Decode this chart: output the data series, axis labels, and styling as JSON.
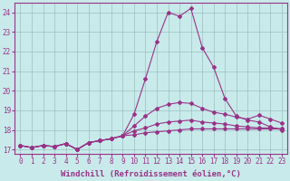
{
  "xlabel": "Windchill (Refroidissement éolien,°C)",
  "ylabel": "",
  "xlim": [
    -0.5,
    23.5
  ],
  "ylim": [
    16.8,
    24.5
  ],
  "yticks": [
    17,
    18,
    19,
    20,
    21,
    22,
    23,
    24
  ],
  "xticks": [
    0,
    1,
    2,
    3,
    4,
    5,
    6,
    7,
    8,
    9,
    10,
    11,
    12,
    13,
    14,
    15,
    16,
    17,
    18,
    19,
    20,
    21,
    22,
    23
  ],
  "bg_color": "#c8eaea",
  "line_color": "#993388",
  "grid_color": "#9bbfbf",
  "lines": [
    [
      17.2,
      17.1,
      17.2,
      17.15,
      17.3,
      17.0,
      17.35,
      17.45,
      17.55,
      17.7,
      18.8,
      20.6,
      22.5,
      24.0,
      23.8,
      24.2,
      22.2,
      21.2,
      19.6,
      18.7,
      18.5,
      18.4,
      18.15,
      18.0
    ],
    [
      17.2,
      17.1,
      17.2,
      17.15,
      17.3,
      17.0,
      17.35,
      17.45,
      17.55,
      17.7,
      18.2,
      18.7,
      19.1,
      19.3,
      19.4,
      19.35,
      19.1,
      18.9,
      18.8,
      18.65,
      18.55,
      18.75,
      18.55,
      18.35
    ],
    [
      17.2,
      17.1,
      17.2,
      17.15,
      17.3,
      17.0,
      17.35,
      17.45,
      17.55,
      17.7,
      17.95,
      18.1,
      18.3,
      18.4,
      18.45,
      18.5,
      18.4,
      18.35,
      18.3,
      18.2,
      18.15,
      18.1,
      18.1,
      18.05
    ],
    [
      17.2,
      17.1,
      17.2,
      17.15,
      17.3,
      17.0,
      17.35,
      17.45,
      17.55,
      17.7,
      17.75,
      17.85,
      17.9,
      17.95,
      18.0,
      18.05,
      18.05,
      18.05,
      18.05,
      18.05,
      18.05,
      18.05,
      18.05,
      18.05
    ]
  ],
  "marker": "D",
  "marker_size": 2,
  "line_width": 0.8,
  "tick_fontsize": 5.5,
  "label_fontsize": 6.5
}
